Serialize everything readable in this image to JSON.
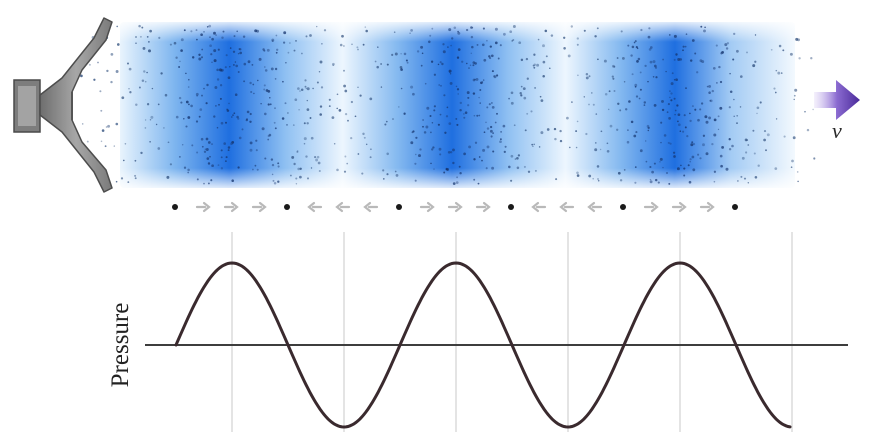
{
  "diagram": {
    "velocity_symbol": "v",
    "graph_ylabel": "Pressure",
    "wave_cycles": 3,
    "arrow_sequence_per_cycle": [
      "dot",
      "right",
      "right",
      "right",
      "dot",
      "left",
      "left",
      "left"
    ],
    "colors": {
      "compression": "#1f6fe0",
      "medium": "#eaf4fd",
      "speaker": "#8c8c8c",
      "speaker_dark": "#5f5f5f",
      "arrow": "#b9b9b9",
      "dot": "#1a1a1a",
      "curve": "#3a2a2e",
      "axis": "#3d3d3d",
      "gridline": "#c9c9c9",
      "velocity_arrow": "#5b3ca8"
    }
  }
}
